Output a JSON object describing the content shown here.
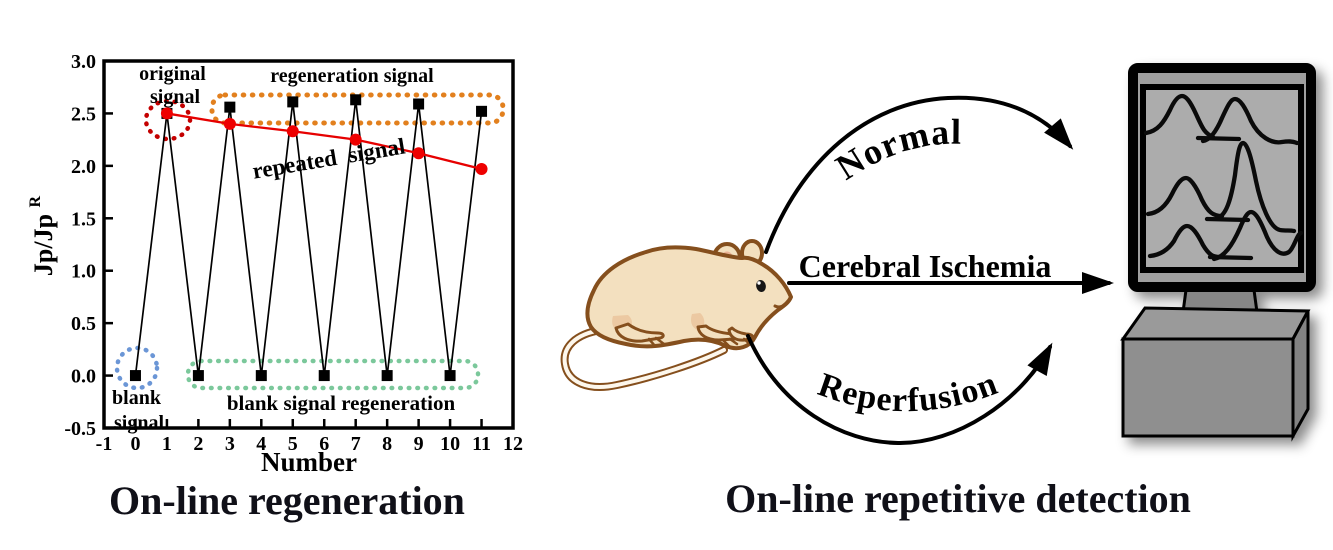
{
  "captions": {
    "left": "On-line regeneration",
    "right": "On-line repetitive detection"
  },
  "chart_data": {
    "type": "line",
    "xlabel": "Number",
    "ylabel": "Jp/Jp",
    "ylabel_sup": "R",
    "xlim": [
      -1,
      12
    ],
    "ylim": [
      -0.5,
      3.0
    ],
    "grid": "off",
    "x_ticks": [
      -1,
      0,
      1,
      2,
      3,
      4,
      5,
      6,
      7,
      8,
      9,
      10,
      11,
      12
    ],
    "y_ticks": [
      "-0.5",
      "0.0",
      "0.5",
      "1.0",
      "1.5",
      "2.0",
      "2.5",
      "3.0"
    ],
    "series": [
      {
        "name": "regeneration signal",
        "marker": "square",
        "color": "#000000",
        "line_color": "#000000",
        "x": [
          0,
          1,
          2,
          3,
          4,
          5,
          6,
          7,
          8,
          9,
          10,
          11
        ],
        "y": [
          0.0,
          2.5,
          0.0,
          2.56,
          0.0,
          2.61,
          0.0,
          2.63,
          0.0,
          2.59,
          0.0,
          2.52
        ]
      },
      {
        "name": "repeated signal",
        "marker": "circle",
        "color": "#ee0000",
        "line_color": "#e60000",
        "x": [
          1,
          3,
          5,
          7,
          9,
          11
        ],
        "y": [
          2.5,
          2.4,
          2.33,
          2.25,
          2.12,
          1.97
        ]
      }
    ],
    "annotations": {
      "original_signal": {
        "line1": "original",
        "line2": "signal",
        "color": "#c40000"
      },
      "regeneration_signal": {
        "label": "regeneration  signal",
        "color": "#e2801e"
      },
      "repeated_signal": {
        "label": "repeated  signal",
        "color": "#ee0000"
      },
      "blank_signal": {
        "line1": "blank",
        "line2": "signal",
        "color": "#6b96d6"
      },
      "blank_signal_regeneration": {
        "label": "blank signal regeneration",
        "color": "#7bc89b"
      }
    }
  },
  "diagram": {
    "subject": "rat",
    "arrow_labels": {
      "top": "Normal",
      "middle": "Cerebral Ischemia",
      "bottom": "Reperfusion"
    },
    "label_color": "#ee0000"
  }
}
